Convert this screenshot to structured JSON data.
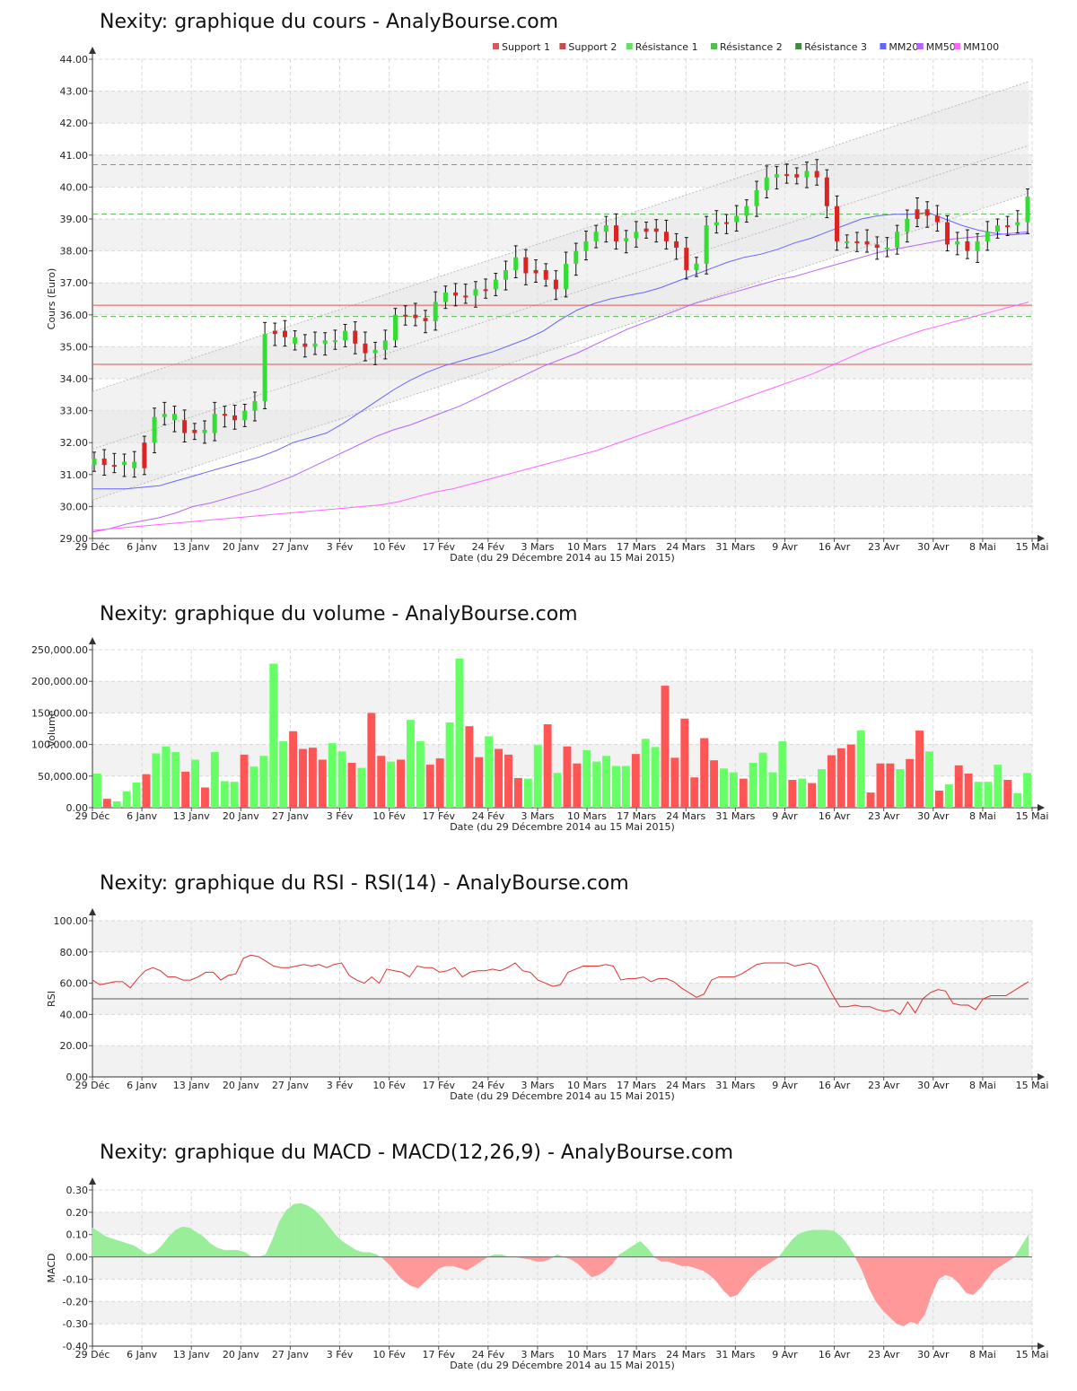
{
  "colors": {
    "up": "#66ff66",
    "down": "#ff5555",
    "grid": "#d8d8d8",
    "band": "#f2f2f2",
    "mm20": "#6666ff",
    "mm50": "#b266ff",
    "mm100": "#ff66ff",
    "support": "#e05555",
    "resistance": "#55b855",
    "rsi": "#e03030"
  },
  "x_ticks": [
    "29 Déc",
    "6 Janv",
    "13 Janv",
    "20 Janv",
    "27 Janv",
    "3 Fév",
    "10 Fév",
    "17 Fév",
    "24 Fév",
    "3 Mars",
    "10 Mars",
    "17 Mars",
    "24 Mars",
    "31 Mars",
    "9 Avr",
    "16 Avr",
    "23 Avr",
    "30 Avr",
    "8 Mai",
    "15 Mai"
  ],
  "x_title": "Date (du 29 Décembre 2014 au 15 Mai 2015)",
  "price": {
    "title": "Nexity: graphique du cours - AnalyBourse.com",
    "ylabel": "Cours (Euro)",
    "legend": [
      {
        "label": "Support 1",
        "color": "#e05555"
      },
      {
        "label": "Support 2",
        "color": "#c05050"
      },
      {
        "label": "Résistance 1",
        "color": "#66dd66"
      },
      {
        "label": "Résistance 2",
        "color": "#55bb55"
      },
      {
        "label": "Résistance 3",
        "color": "#448844"
      },
      {
        "label": "MM20",
        "color": "#6666ff"
      },
      {
        "label": "MM50",
        "color": "#b266ff"
      },
      {
        "label": "MM100",
        "color": "#ff66ff"
      }
    ]
  },
  "volume": {
    "title": "Nexity: graphique du volume - AnalyBourse.com",
    "ylabel": "Volume"
  },
  "rsi": {
    "title": "Nexity: graphique du RSI - RSI(14) - AnalyBourse.com",
    "ylabel": "RSI"
  },
  "macd": {
    "title": "Nexity: graphique du MACD - MACD(12,26,9) - AnalyBourse.com",
    "ylabel": "MACD"
  },
  "chart_data": [
    {
      "type": "candlestick",
      "title": "Nexity: graphique du cours - AnalyBourse.com",
      "xlabel": "Date (du 29 Décembre 2014 au 15 Mai 2015)",
      "ylabel": "Cours (Euro)",
      "ylim": [
        29,
        44
      ],
      "yticks": [
        "29.00",
        "30.00",
        "31.00",
        "32.00",
        "33.00",
        "34.00",
        "35.00",
        "36.00",
        "37.00",
        "38.00",
        "39.00",
        "40.00",
        "41.00",
        "42.00",
        "43.00",
        "44.00"
      ],
      "close": [
        31.5,
        31.3,
        31.3,
        31.4,
        31.2,
        32.0,
        32.8,
        32.9,
        32.7,
        32.3,
        32.4,
        32.3,
        32.9,
        32.85,
        32.7,
        33.0,
        33.3,
        35.4,
        35.5,
        35.3,
        35.1,
        35.0,
        35.1,
        35.2,
        35.2,
        35.5,
        35.1,
        34.8,
        34.9,
        35.2,
        36.0,
        36.0,
        35.9,
        35.8,
        36.4,
        36.7,
        36.6,
        36.6,
        36.8,
        36.8,
        37.1,
        37.4,
        37.8,
        37.3,
        37.4,
        37.1,
        36.8,
        37.6,
        38.0,
        38.3,
        38.6,
        38.8,
        38.3,
        38.4,
        38.6,
        38.7,
        38.6,
        38.3,
        38.1,
        37.4,
        37.6,
        38.8,
        38.9,
        38.9,
        39.1,
        39.4,
        39.9,
        40.3,
        40.4,
        40.4,
        40.3,
        40.5,
        40.3,
        39.4,
        38.3,
        38.3,
        38.3,
        38.2,
        38.1,
        38.1,
        38.6,
        39.0,
        39.3,
        39.1,
        38.9,
        38.2,
        38.3,
        38.0,
        38.3,
        38.6,
        38.8,
        38.8,
        38.9,
        39.7
      ],
      "up": [
        true,
        false,
        false,
        true,
        true,
        false,
        true,
        true,
        true,
        false,
        false,
        true,
        true,
        false,
        false,
        true,
        true,
        true,
        false,
        false,
        true,
        false,
        true,
        true,
        true,
        true,
        false,
        false,
        true,
        true,
        true,
        false,
        false,
        false,
        true,
        true,
        false,
        false,
        true,
        false,
        true,
        true,
        true,
        false,
        false,
        false,
        false,
        true,
        true,
        true,
        true,
        true,
        false,
        true,
        true,
        false,
        false,
        false,
        false,
        false,
        true,
        true,
        true,
        false,
        true,
        true,
        true,
        true,
        true,
        false,
        false,
        true,
        false,
        false,
        false,
        true,
        false,
        false,
        false,
        true,
        true,
        true,
        false,
        false,
        false,
        false,
        true,
        false,
        true,
        true,
        true,
        false,
        true,
        true
      ],
      "ma": {
        "MM20": [
          30.55,
          30.55,
          30.55,
          30.6,
          30.65,
          30.8,
          30.95,
          31.1,
          31.25,
          31.4,
          31.55,
          31.75,
          32.0,
          32.15,
          32.3,
          32.6,
          32.95,
          33.3,
          33.65,
          33.95,
          34.2,
          34.4,
          34.55,
          34.7,
          34.85,
          35.05,
          35.25,
          35.5,
          35.85,
          36.15,
          36.35,
          36.5,
          36.6,
          36.7,
          36.85,
          37.05,
          37.25,
          37.45,
          37.65,
          37.8,
          37.9,
          38.05,
          38.25,
          38.4,
          38.6,
          38.8,
          39.0,
          39.1,
          39.15,
          39.15,
          39.2,
          39.0,
          38.8,
          38.65,
          38.55,
          38.5,
          38.55
        ],
        "MM50": [
          29.2,
          29.3,
          29.45,
          29.55,
          29.65,
          29.8,
          30.0,
          30.1,
          30.25,
          30.4,
          30.55,
          30.75,
          30.95,
          31.2,
          31.45,
          31.7,
          31.95,
          32.2,
          32.4,
          32.55,
          32.75,
          32.95,
          33.15,
          33.4,
          33.65,
          33.9,
          34.15,
          34.4,
          34.6,
          34.8,
          35.05,
          35.3,
          35.55,
          35.75,
          35.95,
          36.15,
          36.35,
          36.5,
          36.65,
          36.8,
          36.95,
          37.1,
          37.2,
          37.35,
          37.5,
          37.65,
          37.8,
          37.95,
          38.05,
          38.15,
          38.25,
          38.35,
          38.4,
          38.45,
          38.5,
          38.55,
          38.6
        ],
        "MM100": [
          29.25,
          29.3,
          29.35,
          29.4,
          29.45,
          29.5,
          29.55,
          29.6,
          29.65,
          29.7,
          29.75,
          29.8,
          29.85,
          29.9,
          29.95,
          30.0,
          30.05,
          30.15,
          30.3,
          30.45,
          30.55,
          30.7,
          30.85,
          31.0,
          31.15,
          31.3,
          31.45,
          31.6,
          31.75,
          31.95,
          32.15,
          32.35,
          32.55,
          32.75,
          32.95,
          33.15,
          33.35,
          33.55,
          33.75,
          33.95,
          34.15,
          34.4,
          34.65,
          34.9,
          35.1,
          35.3,
          35.5,
          35.65,
          35.8,
          35.95,
          36.1,
          36.25,
          36.4
        ]
      },
      "support": [
        36.3,
        34.45
      ],
      "resistance": [
        40.7,
        39.15,
        35.95
      ]
    },
    {
      "type": "bar",
      "title": "Nexity: graphique du volume - AnalyBourse.com",
      "xlabel": "Date (du 29 Décembre 2014 au 15 Mai 2015)",
      "ylabel": "Volume",
      "ylim": [
        0,
        250000
      ],
      "yticks": [
        "0.00",
        "50,000.00",
        "100,000.00",
        "150,000.00",
        "200,000.00",
        "250,000.00"
      ],
      "values": [
        54000,
        14000,
        10000,
        26000,
        40000,
        53000,
        86000,
        97000,
        88000,
        57000,
        76000,
        32000,
        88000,
        42000,
        41000,
        84000,
        65000,
        82000,
        228000,
        105000,
        121000,
        93000,
        95000,
        76000,
        102000,
        89000,
        71000,
        63000,
        150000,
        82000,
        73000,
        76000,
        139000,
        105000,
        68000,
        78000,
        135000,
        236000,
        129000,
        80000,
        113000,
        93000,
        84000,
        47000,
        46000,
        99000,
        132000,
        55000,
        97000,
        70000,
        91000,
        73000,
        82000,
        66000,
        66000,
        85000,
        109000,
        96000,
        193000,
        79000,
        141000,
        48000,
        110000,
        75000,
        62000,
        56000,
        46000,
        71000,
        87000,
        56000,
        105000,
        44000,
        46000,
        39000,
        61000,
        83000,
        94000,
        100000,
        122000,
        24000,
        70000,
        70000,
        61000,
        77000,
        122000,
        89000,
        27000,
        37000,
        67000,
        54000,
        41000,
        41000,
        68000,
        44000,
        23000,
        55000
      ],
      "up": [
        true,
        false,
        true,
        true,
        true,
        false,
        true,
        true,
        true,
        false,
        true,
        false,
        true,
        true,
        true,
        false,
        true,
        true,
        true,
        true,
        false,
        false,
        false,
        false,
        true,
        true,
        false,
        true,
        false,
        false,
        true,
        false,
        true,
        true,
        false,
        false,
        true,
        true,
        false,
        false,
        true,
        false,
        false,
        false,
        true,
        true,
        false,
        true,
        false,
        false,
        true,
        true,
        true,
        true,
        true,
        false,
        true,
        true,
        false,
        false,
        false,
        false,
        false,
        false,
        true,
        true,
        false,
        true,
        true,
        true,
        true,
        false,
        true,
        false,
        true,
        false,
        false,
        false,
        true,
        false,
        false,
        false,
        true,
        false,
        false,
        true,
        false,
        true,
        false,
        false,
        true,
        true,
        true,
        false,
        true,
        true
      ]
    },
    {
      "type": "line",
      "title": "Nexity: graphique du RSI - RSI(14) - AnalyBourse.com",
      "xlabel": "Date (du 29 Décembre 2014 au 15 Mai 2015)",
      "ylabel": "RSI",
      "ylim": [
        0,
        100
      ],
      "yticks": [
        "0.00",
        "20.00",
        "40.00",
        "60.00",
        "80.00",
        "100.00"
      ],
      "reference": 50,
      "values": [
        62,
        59,
        60,
        61,
        61,
        57,
        63,
        68,
        70,
        68,
        64,
        64,
        62,
        62,
        64,
        67,
        67,
        62,
        65,
        66,
        76,
        78,
        77,
        74,
        71,
        70,
        70,
        71,
        72,
        71,
        72,
        70,
        72,
        73,
        65,
        62,
        60,
        64,
        60,
        69,
        68,
        67,
        64,
        71,
        70,
        70,
        67,
        68,
        70,
        64,
        67,
        68,
        68,
        69,
        68,
        70,
        73,
        68,
        67,
        62,
        60,
        58,
        59,
        67,
        69,
        71,
        71,
        71,
        72,
        71,
        62,
        63,
        63,
        64,
        61,
        63,
        63,
        61,
        57,
        54,
        51,
        53,
        62,
        64,
        64,
        64,
        66,
        69,
        72,
        73,
        73,
        73,
        73,
        71,
        72,
        73,
        71,
        62,
        53,
        45,
        45,
        46,
        45,
        45,
        43,
        42,
        43,
        40,
        48,
        41,
        50,
        54,
        56,
        55,
        47,
        46,
        46,
        43,
        50,
        52,
        52,
        52,
        55,
        58,
        61
      ]
    },
    {
      "type": "area",
      "title": "Nexity: graphique du MACD - MACD(12,26,9) - AnalyBourse.com",
      "xlabel": "Date (du 29 Décembre 2014 au 15 Mai 2015)",
      "ylabel": "MACD",
      "ylim": [
        -0.4,
        0.3
      ],
      "yticks": [
        "-0.40",
        "-0.30",
        "-0.20",
        "-0.10",
        "0.00",
        "0.10",
        "0.20",
        "0.30"
      ],
      "values": [
        0.13,
        0.11,
        0.09,
        0.08,
        0.07,
        0.06,
        0.05,
        0.03,
        0.01,
        0.02,
        0.05,
        0.09,
        0.12,
        0.135,
        0.13,
        0.11,
        0.09,
        0.06,
        0.04,
        0.03,
        0.03,
        0.03,
        0.02,
        0.0,
        0.0,
        0.01,
        0.08,
        0.16,
        0.21,
        0.235,
        0.24,
        0.23,
        0.21,
        0.18,
        0.14,
        0.1,
        0.07,
        0.05,
        0.03,
        0.02,
        0.02,
        0.01,
        -0.01,
        -0.04,
        -0.08,
        -0.11,
        -0.13,
        -0.14,
        -0.11,
        -0.08,
        -0.05,
        -0.04,
        -0.04,
        -0.05,
        -0.06,
        -0.04,
        -0.02,
        0.0,
        0.01,
        0.01,
        0.0,
        0.0,
        -0.005,
        -0.01,
        -0.02,
        -0.02,
        -0.01,
        0.01,
        0.0,
        -0.01,
        -0.03,
        -0.06,
        -0.09,
        -0.08,
        -0.06,
        -0.03,
        0.01,
        0.03,
        0.05,
        0.07,
        0.04,
        0.0,
        -0.02,
        -0.02,
        -0.03,
        -0.04,
        -0.04,
        -0.05,
        -0.06,
        -0.08,
        -0.11,
        -0.15,
        -0.18,
        -0.17,
        -0.13,
        -0.09,
        -0.06,
        -0.04,
        -0.02,
        0.0,
        0.04,
        0.08,
        0.105,
        0.115,
        0.12,
        0.12,
        0.12,
        0.115,
        0.09,
        0.05,
        0.0,
        -0.06,
        -0.14,
        -0.2,
        -0.24,
        -0.27,
        -0.3,
        -0.31,
        -0.29,
        -0.3,
        -0.26,
        -0.17,
        -0.1,
        -0.08,
        -0.09,
        -0.12,
        -0.16,
        -0.17,
        -0.14,
        -0.1,
        -0.06,
        -0.04,
        -0.02,
        0.0,
        0.05,
        0.1
      ]
    }
  ]
}
